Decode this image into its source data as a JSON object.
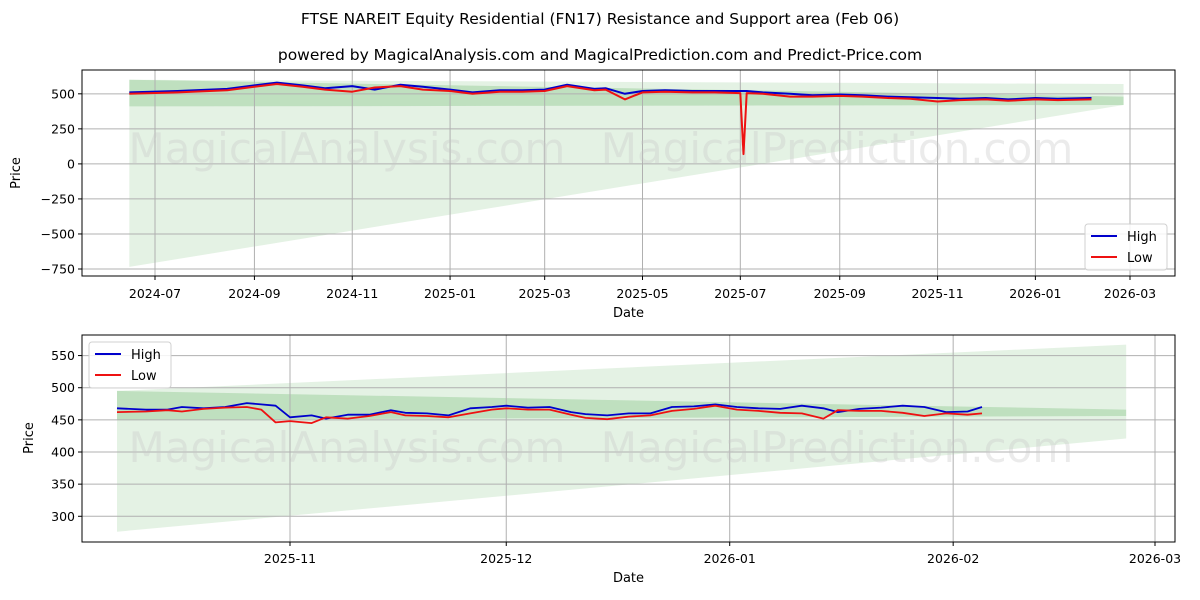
{
  "header": {
    "title": "FTSE NAREIT Equity Residential (FN17) Resistance and Support area (Feb 06)",
    "subtitle": "powered by MagicalAnalysis.com and MagicalPrediction.com and Predict-Price.com"
  },
  "watermarks": [
    "MagicalAnalysis.com",
    "MagicalPrediction.com"
  ],
  "colors": {
    "high": "#0000cc",
    "low": "#ee1111",
    "band_dark": "#a8d4a8",
    "band_light": "#d8ecd8"
  },
  "chart_data": [
    {
      "type": "line",
      "title": "Full history",
      "xlabel": "Date",
      "ylabel": "Price",
      "ylim": [
        -800,
        670
      ],
      "yticks": [
        -750,
        -500,
        -250,
        0,
        250,
        500
      ],
      "ytick_labels": [
        "−750",
        "−500",
        "−250",
        "0",
        "250",
        "500"
      ],
      "xtick_labels": [
        "2024-07",
        "2024-09",
        "2024-11",
        "2025-01",
        "2025-03",
        "2025-05",
        "2025-07",
        "2025-09",
        "2025-11",
        "2026-01",
        "2026-03"
      ],
      "grid": true,
      "legend": {
        "position": "lower right",
        "entries": [
          "High",
          "Low"
        ]
      },
      "x": [
        "2024-06-15",
        "2024-07-15",
        "2024-08-15",
        "2024-09-01",
        "2024-09-15",
        "2024-10-01",
        "2024-10-15",
        "2024-11-01",
        "2024-11-15",
        "2024-12-01",
        "2024-12-15",
        "2025-01-01",
        "2025-01-15",
        "2025-02-01",
        "2025-02-15",
        "2025-03-01",
        "2025-03-15",
        "2025-04-01",
        "2025-04-08",
        "2025-04-20",
        "2025-05-01",
        "2025-05-15",
        "2025-06-01",
        "2025-06-15",
        "2025-07-01",
        "2025-07-03",
        "2025-07-05",
        "2025-07-15",
        "2025-08-01",
        "2025-08-15",
        "2025-09-01",
        "2025-09-15",
        "2025-10-01",
        "2025-10-15",
        "2025-11-01",
        "2025-11-15",
        "2025-12-01",
        "2025-12-15",
        "2026-01-01",
        "2026-01-15",
        "2026-02-05"
      ],
      "series": [
        {
          "name": "High",
          "values": [
            510,
            520,
            535,
            560,
            580,
            560,
            540,
            555,
            530,
            565,
            550,
            530,
            510,
            525,
            525,
            530,
            565,
            535,
            540,
            500,
            520,
            525,
            520,
            520,
            520,
            520,
            520,
            510,
            500,
            490,
            495,
            490,
            480,
            475,
            470,
            465,
            470,
            460,
            470,
            465,
            470
          ]
        },
        {
          "name": "Low",
          "values": [
            500,
            510,
            525,
            550,
            570,
            550,
            530,
            515,
            545,
            555,
            530,
            520,
            500,
            515,
            515,
            520,
            555,
            525,
            530,
            460,
            510,
            515,
            510,
            510,
            505,
            70,
            505,
            500,
            480,
            480,
            485,
            480,
            470,
            465,
            445,
            455,
            460,
            450,
            460,
            455,
            460
          ]
        }
      ],
      "bands": {
        "resistance_support_dark": {
          "x_start": "2024-06-15",
          "x_end": "2026-02-25",
          "top_start": 600,
          "top_end": 480,
          "bottom_start": 410,
          "bottom_end": 420
        },
        "projection_light": {
          "x_start": "2024-06-15",
          "x_end": "2026-02-25",
          "top_start": 600,
          "top_end": 570,
          "bottom_start": -735,
          "bottom_end": 420
        }
      }
    },
    {
      "type": "line",
      "title": "Recent zoom",
      "xlabel": "Date",
      "ylabel": "Price",
      "ylim": [
        260,
        582
      ],
      "yticks": [
        300,
        350,
        400,
        450,
        500,
        550
      ],
      "ytick_labels": [
        "300",
        "350",
        "400",
        "450",
        "500",
        "550"
      ],
      "xtick_labels": [
        "2025-11",
        "2025-12",
        "2026-01",
        "2026-02",
        "2026-03"
      ],
      "grid": true,
      "legend": {
        "position": "upper left",
        "entries": [
          "High",
          "Low"
        ]
      },
      "x": [
        "2025-10-08",
        "2025-10-12",
        "2025-10-15",
        "2025-10-17",
        "2025-10-20",
        "2025-10-23",
        "2025-10-26",
        "2025-10-28",
        "2025-10-30",
        "2025-11-01",
        "2025-11-04",
        "2025-11-06",
        "2025-11-09",
        "2025-11-12",
        "2025-11-15",
        "2025-11-17",
        "2025-11-20",
        "2025-11-23",
        "2025-11-26",
        "2025-11-29",
        "2025-12-01",
        "2025-12-04",
        "2025-12-07",
        "2025-12-10",
        "2025-12-12",
        "2025-12-15",
        "2025-12-18",
        "2025-12-21",
        "2025-12-24",
        "2025-12-27",
        "2025-12-30",
        "2026-01-02",
        "2026-01-05",
        "2026-01-08",
        "2026-01-11",
        "2026-01-14",
        "2026-01-16",
        "2026-01-19",
        "2026-01-22",
        "2026-01-25",
        "2026-01-28",
        "2026-01-31",
        "2026-02-03",
        "2026-02-05"
      ],
      "series": [
        {
          "name": "High",
          "values": [
            468,
            466,
            466,
            470,
            468,
            470,
            476,
            474,
            472,
            454,
            457,
            452,
            458,
            458,
            465,
            461,
            460,
            457,
            468,
            470,
            472,
            469,
            470,
            462,
            459,
            457,
            460,
            460,
            470,
            471,
            474,
            470,
            468,
            467,
            472,
            468,
            462,
            467,
            469,
            472,
            470,
            462,
            463,
            470
          ]
        },
        {
          "name": "Low",
          "values": [
            462,
            463,
            465,
            463,
            467,
            469,
            470,
            466,
            446,
            448,
            445,
            454,
            452,
            456,
            462,
            457,
            456,
            454,
            460,
            466,
            468,
            466,
            466,
            458,
            453,
            451,
            455,
            457,
            464,
            467,
            472,
            466,
            464,
            461,
            460,
            452,
            465,
            464,
            464,
            461,
            456,
            460,
            458,
            460
          ]
        }
      ],
      "bands": {
        "resistance_support_dark": {
          "x_start": "2025-10-08",
          "x_end": "2026-02-25",
          "top_start": 495,
          "top_end": 466,
          "bottom_start": 450,
          "bottom_end": 456
        },
        "projection_light": {
          "x_start": "2025-10-08",
          "x_end": "2026-02-25",
          "top_start": 495,
          "top_end": 567,
          "bottom_start": 276,
          "bottom_end": 421
        }
      }
    }
  ]
}
